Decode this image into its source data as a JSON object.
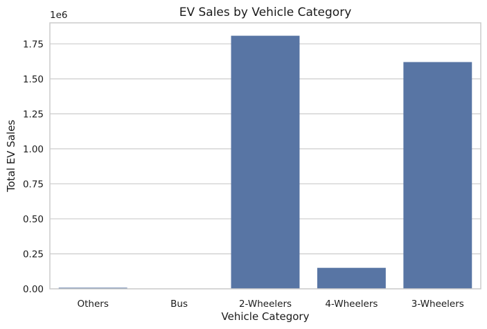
{
  "chart_data": {
    "type": "bar",
    "title": "EV Sales by Vehicle Category",
    "xlabel": "Vehicle Category",
    "ylabel": "Total EV Sales",
    "offset_text": "1e6",
    "categories": [
      "Others",
      "Bus",
      "2-Wheelers",
      "4-Wheelers",
      "3-Wheelers"
    ],
    "values": [
      8000,
      1000,
      1808000,
      150000,
      1620000
    ],
    "ylim": [
      0,
      1900000
    ],
    "yticks": [
      0,
      250000,
      500000,
      750000,
      1000000,
      1250000,
      1500000,
      1750000
    ],
    "ytick_labels": [
      "0.00",
      "0.25",
      "0.50",
      "0.75",
      "1.00",
      "1.25",
      "1.50",
      "1.75"
    ],
    "grid": true,
    "bar_color": "#5875a4",
    "grid_color": "#cccccc"
  }
}
